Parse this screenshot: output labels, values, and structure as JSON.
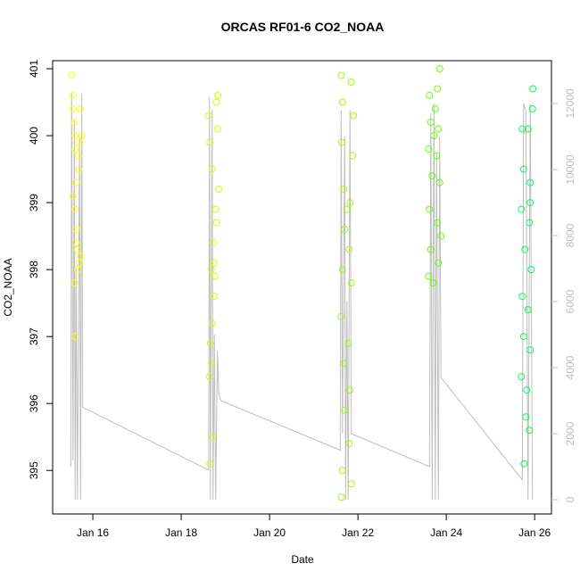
{
  "chart_data": {
    "type": "scatter",
    "title": "ORCAS RF01-6 CO2_NOAA",
    "x_label": "Date",
    "y_label": "CO2_NOAA",
    "xlim": [
      15.09,
      26.38
    ],
    "xticks": [
      {
        "value": 16,
        "label": "Jan 16"
      },
      {
        "value": 18,
        "label": "Jan 18"
      },
      {
        "value": 20,
        "label": "Jan 20"
      },
      {
        "value": 22,
        "label": "Jan 22"
      },
      {
        "value": 24,
        "label": "Jan 24"
      },
      {
        "value": 26,
        "label": "Jan 26"
      }
    ],
    "ylim": [
      394.35,
      401.12
    ],
    "yticks": [
      395,
      396,
      397,
      398,
      399,
      400,
      401
    ],
    "y2lim": [
      -432,
      13297
    ],
    "y2ticks": [
      0,
      2000,
      4000,
      6000,
      8000,
      10000,
      12000
    ],
    "y2_color": "#bebebe",
    "series": [
      {
        "type": "line",
        "axis": "y2",
        "color": "#bebebe",
        "x": [
          15.5,
          15.52,
          15.55,
          15.58,
          15.6,
          15.62,
          15.65,
          15.7,
          15.72,
          15.75,
          15.77,
          18.62,
          18.64,
          18.66,
          18.7,
          18.72,
          18.75,
          18.78,
          18.82,
          18.85,
          18.9,
          21.6,
          21.62,
          21.65,
          21.7,
          21.72,
          21.75,
          21.78,
          21.82,
          21.85,
          23.62,
          23.65,
          23.68,
          23.72,
          23.75,
          23.78,
          23.82,
          23.85,
          23.88,
          25.72,
          25.75,
          25.8,
          25.85,
          25.9,
          25.95
        ],
        "values": [
          1000,
          12300,
          1200,
          11500,
          0,
          7000,
          0,
          11000,
          0,
          12300,
          2800,
          900,
          12200,
          0,
          11800,
          0,
          5000,
          0,
          4500,
          3200,
          3000,
          1500,
          11800,
          2000,
          11000,
          0,
          6000,
          0,
          11800,
          2000,
          1000,
          11700,
          0,
          12000,
          0,
          10500,
          0,
          11000,
          3700,
          600,
          12000,
          11800,
          0,
          12000,
          0
        ]
      },
      {
        "type": "scatter",
        "color": "#ffff00",
        "x": [
          15.52,
          15.55,
          15.58,
          15.6,
          15.62,
          15.55,
          15.6,
          15.63,
          15.65,
          15.7,
          15.58,
          15.6,
          15.7,
          15.72,
          15.75,
          15.68,
          15.62,
          15.66,
          15.73,
          15.55,
          15.6,
          15.67
        ],
        "values": [
          400.9,
          400.6,
          400.2,
          399.8,
          399.3,
          399.1,
          398.9,
          398.6,
          398.3,
          398.1,
          397.8,
          397.0,
          399.9,
          400.4,
          400.0,
          399.5,
          398.4,
          398.0,
          398.2,
          400.4,
          400.0,
          399.7
        ]
      },
      {
        "type": "scatter",
        "color": "#ccff00",
        "x": [
          18.62,
          18.65,
          18.7,
          18.72,
          18.68,
          18.75,
          18.66,
          18.64,
          18.7,
          18.65,
          18.8,
          18.82,
          18.85,
          18.78,
          18.8,
          18.74,
          18.7,
          18.68,
          18.76,
          18.83
        ],
        "values": [
          400.3,
          399.9,
          399.5,
          398.4,
          398.0,
          397.6,
          396.9,
          396.4,
          395.5,
          395.1,
          400.5,
          400.1,
          399.2,
          398.9,
          398.7,
          398.1,
          397.2,
          396.6,
          397.9,
          400.6
        ]
      },
      {
        "type": "scatter",
        "color": "#99ff00",
        "x": [
          21.62,
          21.65,
          21.63,
          21.68,
          21.7,
          21.65,
          21.62,
          21.68,
          21.7,
          21.65,
          21.63,
          21.85,
          21.9,
          21.88,
          21.82,
          21.8,
          21.85,
          21.78,
          21.82,
          21.8,
          21.85,
          21.75
        ],
        "values": [
          400.9,
          400.5,
          399.9,
          399.2,
          398.6,
          398.0,
          397.3,
          396.6,
          395.9,
          395.0,
          394.6,
          400.8,
          400.3,
          399.7,
          399.0,
          398.3,
          397.8,
          396.9,
          396.2,
          395.4,
          394.8,
          398.9
        ]
      },
      {
        "type": "scatter",
        "color": "#66ff00",
        "x": [
          23.62,
          23.65,
          23.6,
          23.68,
          23.62,
          23.65,
          23.6,
          23.7,
          23.8,
          23.85,
          23.82,
          23.78,
          23.85,
          23.8,
          23.82,
          23.75,
          23.72,
          23.88
        ],
        "values": [
          400.6,
          400.2,
          399.8,
          399.4,
          398.9,
          398.3,
          397.9,
          397.8,
          400.7,
          401.0,
          400.1,
          399.7,
          399.3,
          398.7,
          398.1,
          400.4,
          400.0,
          398.5
        ]
      },
      {
        "type": "scatter",
        "color": "#00ff55",
        "x": [
          25.72,
          25.75,
          25.7,
          25.78,
          25.72,
          25.75,
          25.7,
          25.8,
          25.76,
          25.85,
          25.9,
          25.88,
          25.92,
          25.85,
          25.9,
          25.82,
          25.88,
          25.95,
          25.96,
          25.9
        ],
        "values": [
          400.1,
          399.5,
          398.9,
          398.3,
          397.6,
          397.0,
          396.4,
          395.8,
          395.1,
          400.1,
          399.3,
          398.7,
          398.0,
          397.4,
          396.8,
          396.2,
          395.6,
          400.4,
          400.7,
          399.0
        ]
      }
    ]
  }
}
